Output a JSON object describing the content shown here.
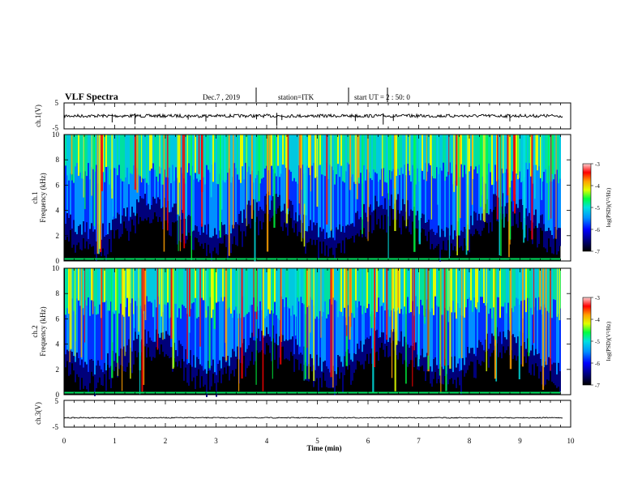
{
  "header": {
    "title": "VLF Spectra",
    "date": "Dec.7 , 2019",
    "station": "station=ITK",
    "start": "start UT = 2 : 50: 0"
  },
  "chart_data": [
    {
      "type": "line",
      "panel": "ch1-waveform",
      "ylabel": "ch.1(V)",
      "ylim": [
        -5,
        5
      ],
      "yticks": [
        "5",
        "-5"
      ],
      "xlim": [
        0,
        10
      ],
      "baseline_v": 0,
      "note_spikes_min": [
        0.95,
        1.4,
        2.45,
        2.8,
        3.8,
        4.2,
        4.3,
        5.75,
        6.3,
        6.5,
        8.8
      ]
    },
    {
      "type": "heatmap",
      "panel": "ch1-spectrogram",
      "ylabel": "ch.1\nFrequency (kHz)",
      "ylim": [
        0,
        10
      ],
      "yticks": [
        "0",
        "2",
        "4",
        "6",
        "8",
        "10"
      ],
      "xlim": [
        0,
        9.8
      ],
      "colorbar": {
        "label": "log(PSD)(V²/Hz)",
        "range": [
          -7,
          -3
        ],
        "ticks": [
          "-3",
          "-4",
          "-5",
          "-6",
          "-7"
        ]
      }
    },
    {
      "type": "heatmap",
      "panel": "ch2-spectrogram",
      "ylabel": "ch.2\nFrequency (kHz)",
      "ylim": [
        0,
        10
      ],
      "yticks": [
        "0",
        "2",
        "4",
        "6",
        "8",
        "10"
      ],
      "xlim": [
        0,
        9.8
      ],
      "colorbar": {
        "label": "log(PSD)(V²/Hz)",
        "range": [
          -7,
          -3
        ],
        "ticks": [
          "-3",
          "-4",
          "-5",
          "-6",
          "-7"
        ]
      }
    },
    {
      "type": "line",
      "panel": "ch3-waveform",
      "ylabel": "ch.3(V)",
      "ylim": [
        -5,
        5
      ],
      "yticks": [
        "5",
        "-5"
      ],
      "xlim": [
        0,
        10
      ],
      "baseline_v": -1.5
    }
  ],
  "xaxis": {
    "label": "Time (min)",
    "ticks": [
      "0",
      "1",
      "2",
      "3",
      "4",
      "5",
      "6",
      "7",
      "8",
      "9",
      "10"
    ]
  },
  "colors": {
    "scale": [
      "#00007a",
      "#0000ff",
      "#0090ff",
      "#00e0e0",
      "#00ff40",
      "#e0ff00",
      "#ffa000",
      "#ff0000",
      "#800000"
    ]
  }
}
